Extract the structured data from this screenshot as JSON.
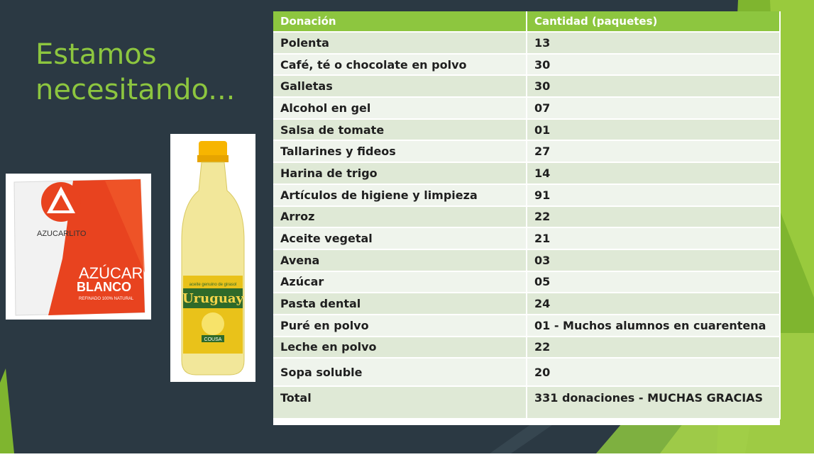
{
  "slide": {
    "title": "Estamos necesitando...",
    "colors": {
      "background": "#2b3943",
      "accent": "#8dc63f",
      "row_dark": "#dfe9d6",
      "row_light": "#eff4ec"
    }
  },
  "images": {
    "sugar": {
      "brand": "AZUCARLITO",
      "line1": "AZÚCAR",
      "line2": "BLANCO",
      "subtitle": "REFINADO 100% NATURAL"
    },
    "oil": {
      "brand": "Uruguay",
      "tagline": "aceite genuino de girasol",
      "maker": "COUSA"
    }
  },
  "table": {
    "headers": [
      "Donación",
      "Cantidad (paquetes)"
    ],
    "rows": [
      [
        "Polenta",
        "13"
      ],
      [
        "Café, té o chocolate en polvo",
        "30"
      ],
      [
        "Galletas",
        "30"
      ],
      [
        "Alcohol en gel",
        "07"
      ],
      [
        "Salsa de tomate",
        "01"
      ],
      [
        "Tallarines y fideos",
        "27"
      ],
      [
        "Harina de trigo",
        "14"
      ],
      [
        "Artículos de higiene y limpieza",
        "91"
      ],
      [
        "Arroz",
        "22"
      ],
      [
        "Aceite vegetal",
        "21"
      ],
      [
        "Avena",
        "03"
      ],
      [
        "Azúcar",
        "05"
      ],
      [
        "Pasta dental",
        "24"
      ],
      [
        "Puré en polvo",
        "01 - Muchos alumnos en cuarentena"
      ],
      [
        "Leche en polvo",
        "22"
      ],
      [
        "Sopa soluble",
        "20"
      ]
    ],
    "total": [
      "Total",
      "331 donaciones - MUCHAS GRACIAS"
    ]
  }
}
